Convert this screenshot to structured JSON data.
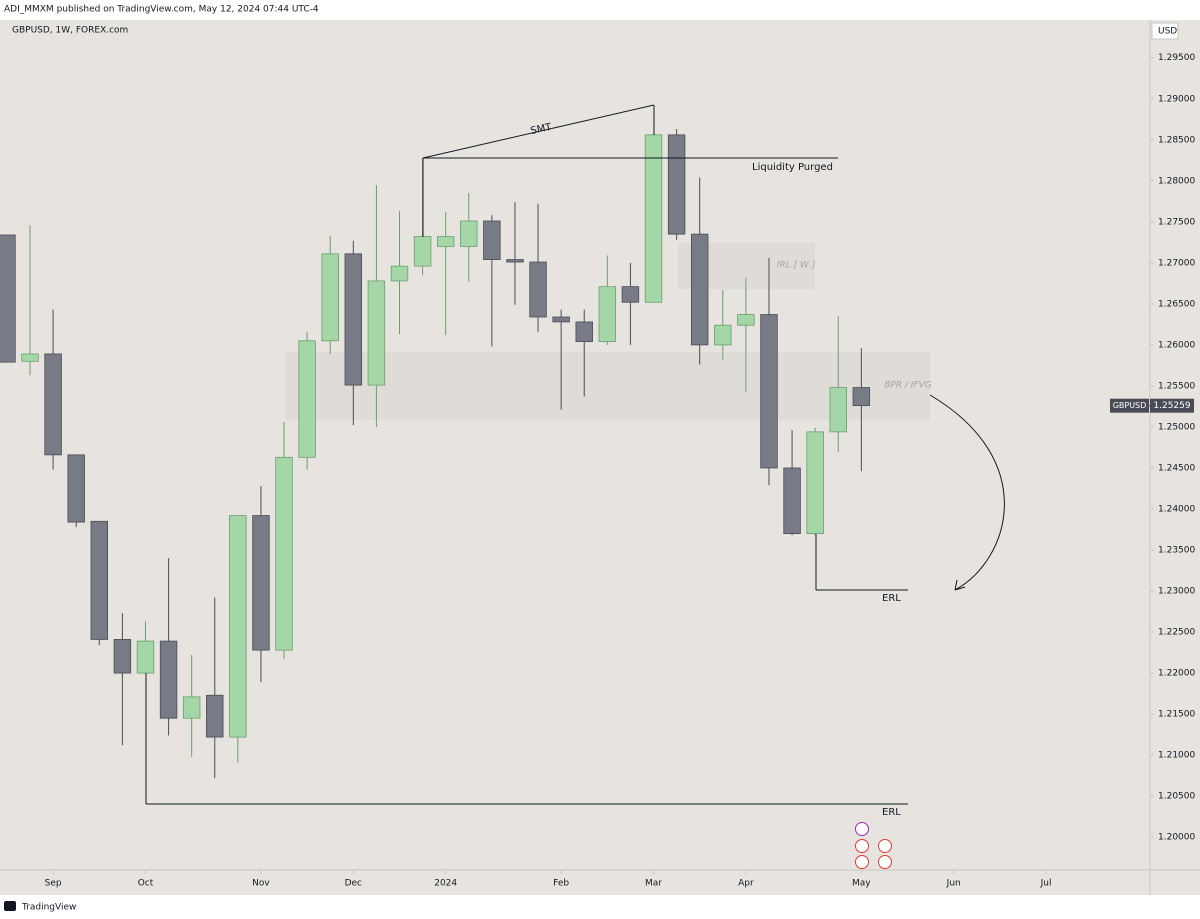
{
  "chart_data": {
    "type": "candlestick",
    "header": "ADI_MMXM published on TradingView.com, May 12, 2024 07:44 UTC-4",
    "title": "GBPUSD, 1W, FOREX.com",
    "currency": "USD",
    "footer": "TradingView",
    "up_color": "#a5d6a7",
    "up_border": "#6a9e6d",
    "down_color": "#787b86",
    "down_border": "#4a4c55",
    "open": [
      1.2734,
      1.258,
      1.2589,
      1.2466,
      1.2385,
      1.2241,
      1.22,
      1.2239,
      1.2145,
      1.2173,
      1.2122,
      1.2392,
      1.2228,
      1.2463,
      1.2605,
      1.2711,
      1.2551,
      1.2678,
      1.2696,
      1.272,
      1.272,
      1.2751,
      1.2704,
      1.2701,
      1.2634,
      1.2628,
      1.2604,
      1.2671,
      1.2652,
      1.2856,
      1.2735,
      1.26,
      1.2624,
      1.2637,
      1.245,
      1.237,
      1.2494,
      1.2548
    ],
    "high": [
      1.2734,
      1.2746,
      1.2643,
      1.2466,
      1.2385,
      1.2273,
      1.2263,
      1.234,
      1.2222,
      1.2292,
      1.2392,
      1.2428,
      1.2506,
      1.2616,
      1.2733,
      1.2727,
      1.2795,
      1.2763,
      1.2828,
      1.2762,
      1.2785,
      1.2758,
      1.2774,
      1.2772,
      1.2643,
      1.2643,
      1.2709,
      1.27,
      1.2856,
      1.2863,
      1.2804,
      1.2667,
      1.2682,
      1.2706,
      1.2496,
      1.2499,
      1.2635,
      1.2596
    ],
    "low": [
      1.2579,
      1.2563,
      1.2448,
      1.2378,
      1.2234,
      1.2112,
      1.22,
      1.2124,
      1.2098,
      1.2072,
      1.2091,
      1.2189,
      1.2217,
      1.2448,
      1.2589,
      1.2502,
      1.25,
      1.2613,
      1.2685,
      1.2612,
      1.2677,
      1.2598,
      1.2649,
      1.2616,
      1.2521,
      1.2537,
      1.26,
      1.26,
      1.2652,
      1.2728,
      1.2576,
      1.2582,
      1.2543,
      1.2429,
      1.2368,
      1.2368,
      1.247,
      1.2446
    ],
    "close": [
      1.2579,
      1.2589,
      1.2466,
      1.2384,
      1.2241,
      1.22,
      1.2239,
      1.2145,
      1.2171,
      1.2122,
      1.2392,
      1.2228,
      1.2463,
      1.2605,
      1.2711,
      1.2551,
      1.2678,
      1.2696,
      1.2732,
      1.2732,
      1.2751,
      1.2704,
      1.2701,
      1.2634,
      1.2628,
      1.2604,
      1.2671,
      1.2652,
      1.2856,
      1.2735,
      1.26,
      1.2624,
      1.2637,
      1.245,
      1.237,
      1.2494,
      1.2548,
      1.2526
    ],
    "xlim": [
      -0.3,
      49.5
    ],
    "xticks": [
      {
        "value": 2,
        "label": "Sep"
      },
      {
        "value": 6,
        "label": "Oct"
      },
      {
        "value": 11,
        "label": "Nov"
      },
      {
        "value": 15,
        "label": "Dec"
      },
      {
        "value": 19,
        "label": "2024"
      },
      {
        "value": 24,
        "label": "Feb"
      },
      {
        "value": 28,
        "label": "Mar"
      },
      {
        "value": 32,
        "label": "Apr"
      },
      {
        "value": 37,
        "label": "May"
      },
      {
        "value": 41,
        "label": "Jun"
      },
      {
        "value": 45,
        "label": "Jul"
      }
    ],
    "ylim": [
      1.196,
      1.2996
    ],
    "yticks": [
      {
        "value": 1.2,
        "label": "1.20000"
      },
      {
        "value": 1.205,
        "label": "1.20500"
      },
      {
        "value": 1.21,
        "label": "1.21000"
      },
      {
        "value": 1.215,
        "label": "1.21500"
      },
      {
        "value": 1.22,
        "label": "1.22000"
      },
      {
        "value": 1.225,
        "label": "1.22500"
      },
      {
        "value": 1.23,
        "label": "1.23000"
      },
      {
        "value": 1.235,
        "label": "1.23500"
      },
      {
        "value": 1.24,
        "label": "1.24000"
      },
      {
        "value": 1.245,
        "label": "1.24500"
      },
      {
        "value": 1.25,
        "label": "1.25000"
      },
      {
        "value": 1.255,
        "label": "1.25500"
      },
      {
        "value": 1.26,
        "label": "1.26000"
      },
      {
        "value": 1.265,
        "label": "1.26500"
      },
      {
        "value": 1.27,
        "label": "1.27000"
      },
      {
        "value": 1.275,
        "label": "1.27500"
      },
      {
        "value": 1.28,
        "label": "1.28000"
      },
      {
        "value": 1.285,
        "label": "1.28500"
      },
      {
        "value": 1.29,
        "label": "1.29000"
      },
      {
        "value": 1.295,
        "label": "1.29500"
      }
    ],
    "grid": false,
    "last_price": {
      "symbol": "GBPUSD",
      "value": 1.25259
    },
    "annotations": [
      "SMT",
      "Liquidity Purged",
      "IRL [ W ]",
      "BPR / IFVG",
      "ERL",
      "ERL"
    ]
  }
}
